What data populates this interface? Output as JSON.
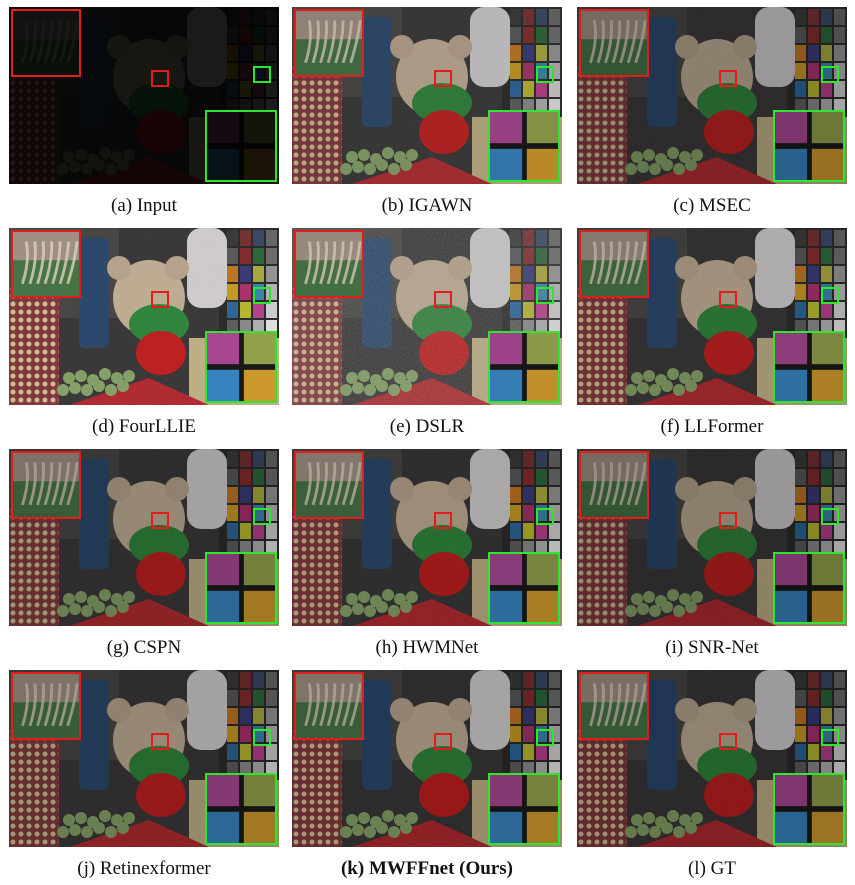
{
  "panels": [
    {
      "caption": "(a) Input",
      "bold": false,
      "brightness": 0.12,
      "tint": "#1a1410",
      "noise": 0.0
    },
    {
      "caption": "(b) IGAWN",
      "bold": false,
      "brightness": 0.85,
      "tint": "#b0a6a0",
      "noise": 0.1
    },
    {
      "caption": "(c) MSEC",
      "bold": false,
      "brightness": 0.7,
      "tint": "#7a7a80",
      "noise": 0.05
    },
    {
      "caption": "(d) FourLLIE",
      "bold": false,
      "brightness": 0.95,
      "tint": "#c9c4d6",
      "noise": 0.05
    },
    {
      "caption": "(e) DSLR",
      "bold": false,
      "brightness": 0.9,
      "tint": "#a9a59b",
      "noise": 0.35
    },
    {
      "caption": "(f) LLFormer",
      "bold": false,
      "brightness": 0.8,
      "tint": "#8f8a86",
      "noise": 0.05
    },
    {
      "caption": "(g) CSPN",
      "bold": false,
      "brightness": 0.75,
      "tint": "#7f7a78",
      "noise": 0.03
    },
    {
      "caption": "(h) HWMNet",
      "bold": false,
      "brightness": 0.78,
      "tint": "#867f7b",
      "noise": 0.03
    },
    {
      "caption": "(i) SNR-Net",
      "bold": false,
      "brightness": 0.7,
      "tint": "#7a7574",
      "noise": 0.03
    },
    {
      "caption": "(j) Retinexformer",
      "bold": false,
      "brightness": 0.75,
      "tint": "#837d7a",
      "noise": 0.03
    },
    {
      "caption": "(k) MWFFnet (Ours)",
      "bold": true,
      "brightness": 0.76,
      "tint": "#847e7b",
      "noise": 0.02
    },
    {
      "caption": "(l) GT",
      "bold": false,
      "brightness": 0.72,
      "tint": "#7d7774",
      "noise": 0.02
    }
  ],
  "colors": {
    "red_box": "#e31c1c",
    "green_box": "#2ee62e"
  }
}
